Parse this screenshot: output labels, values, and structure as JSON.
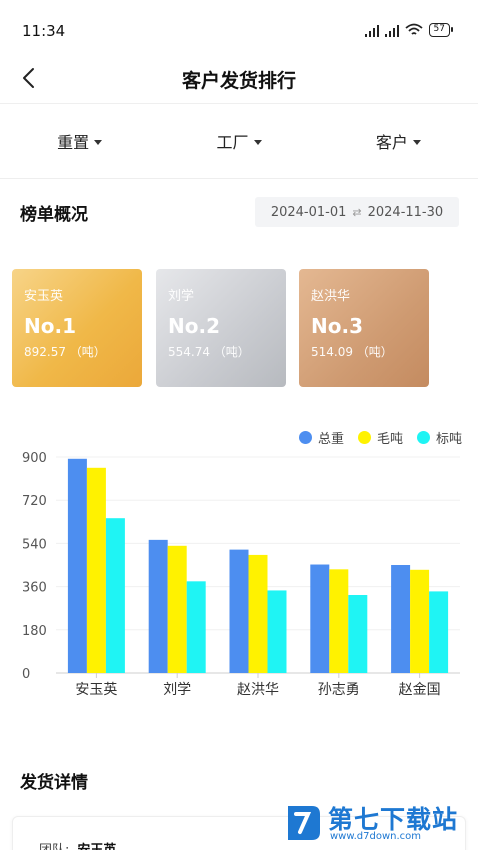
{
  "status_bar": {
    "time": "11:34",
    "battery": "57"
  },
  "nav": {
    "title": "客户发货排行"
  },
  "filters": [
    {
      "label": "重置"
    },
    {
      "label": "工厂"
    },
    {
      "label": "客户"
    }
  ],
  "overview": {
    "title": "榜单概况",
    "date_start": "2024-01-01",
    "date_end": "2024-11-30",
    "swap_glyph": "⇄"
  },
  "ranks": [
    {
      "name": "安玉英",
      "no": "No.1",
      "value": "892.57 （吨）"
    },
    {
      "name": "刘学",
      "no": "No.2",
      "value": "554.74 （吨）"
    },
    {
      "name": "赵洪华",
      "no": "No.3",
      "value": "514.09 （吨）"
    }
  ],
  "chart_data": {
    "type": "bar",
    "categories": [
      "安玉英",
      "刘学",
      "赵洪华",
      "孙志勇",
      "赵金国"
    ],
    "series": [
      {
        "name": "总重",
        "color": "#4d8ef0",
        "values": [
          892.57,
          554.74,
          514.09,
          452,
          450
        ]
      },
      {
        "name": "毛吨",
        "color": "#fff200",
        "values": [
          855,
          530,
          492,
          432,
          430
        ]
      },
      {
        "name": "标吨",
        "color": "#1ff4f4",
        "values": [
          645,
          382,
          344,
          325,
          340
        ]
      }
    ],
    "y_ticks": [
      "0",
      "180",
      "360",
      "540",
      "720",
      "900"
    ],
    "ylim": [
      0,
      900
    ],
    "legend_position": "top-right",
    "grid": true
  },
  "details": {
    "title": "发货详情",
    "team_label": "团队:",
    "team_value": "安玉英"
  },
  "watermark": {
    "name": "第七下载站",
    "url": "www.d7down.com"
  }
}
